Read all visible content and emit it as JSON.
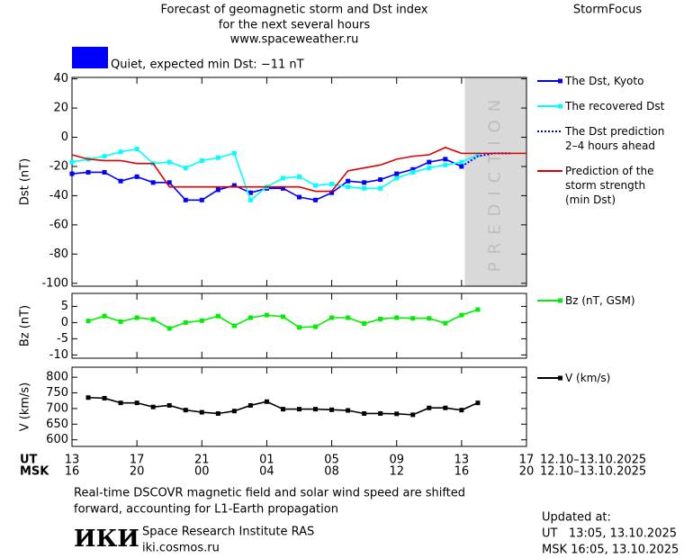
{
  "header": {
    "title": "Forecast of geomagnetic storm and Dst index",
    "subtitle": "for the next several hours",
    "url": "www.spaceweather.ru",
    "brand": "StormFocus"
  },
  "status": {
    "label": "Quiet, expected min Dst: −11 nT",
    "color": "#0000ff"
  },
  "time_axis": {
    "rows": [
      {
        "label": "UT",
        "range": "12.10–13.10.2025",
        "ticks": [
          {
            "value": 0,
            "label": "13"
          },
          {
            "value": 4,
            "label": "17"
          },
          {
            "value": 8,
            "label": "21"
          },
          {
            "value": 12,
            "label": "01"
          },
          {
            "value": 16,
            "label": "05"
          },
          {
            "value": 20,
            "label": "09"
          },
          {
            "value": 24,
            "label": "13"
          },
          {
            "value": 28,
            "label": "17"
          }
        ]
      },
      {
        "label": "MSK",
        "range": "12.10–13.10.2025",
        "ticks": [
          {
            "value": 0,
            "label": "16"
          },
          {
            "value": 4,
            "label": "20"
          },
          {
            "value": 8,
            "label": "00"
          },
          {
            "value": 12,
            "label": "04"
          },
          {
            "value": 16,
            "label": "08"
          },
          {
            "value": 20,
            "label": "12"
          },
          {
            "value": 24,
            "label": "16"
          },
          {
            "value": 28,
            "label": "20"
          }
        ]
      }
    ]
  },
  "chart_data": [
    {
      "type": "line",
      "ylabel": "Dst (nT)",
      "xlim": [
        0,
        28
      ],
      "ylim": [
        -102,
        41
      ],
      "yticks": [
        40,
        20,
        0,
        -20,
        -40,
        -60,
        -80,
        -100
      ],
      "prediction_zone": {
        "xlim": [
          24.2,
          28
        ],
        "label": "PREDICTION"
      },
      "series": [
        {
          "name": "The Dst, Kyoto",
          "color": "#0000ff",
          "marker": "square",
          "x": [
            0,
            1,
            2,
            3,
            4,
            5,
            6,
            7,
            8,
            9,
            10,
            11,
            12,
            13,
            14,
            15,
            16,
            17,
            18,
            19,
            20,
            21,
            22,
            23,
            24
          ],
          "values": [
            -25,
            -24,
            -24,
            -30,
            -27,
            -31,
            -31,
            -43,
            -43,
            -36,
            -33,
            -38,
            -35,
            -35,
            -41,
            -43,
            -38,
            -30,
            -31,
            -29,
            -25,
            -22,
            -17,
            -15,
            -20
          ]
        },
        {
          "name": "The recovered Dst",
          "color": "#00ffff",
          "marker": "square",
          "x": [
            0,
            1,
            2,
            3,
            4,
            5,
            6,
            7,
            8,
            9,
            10,
            11,
            12,
            13,
            14,
            15,
            16,
            17,
            18,
            19,
            20,
            21,
            22,
            23,
            24,
            25
          ],
          "values": [
            -17,
            -15,
            -13,
            -10,
            -8,
            -18,
            -17,
            -21,
            -16,
            -14,
            -11,
            -43,
            -34,
            -28,
            -27,
            -33,
            -32,
            -34,
            -35,
            -35,
            -28,
            -24,
            -21,
            -19,
            -17,
            -12
          ]
        },
        {
          "name": "The Dst prediction\n2–4 hours ahead",
          "color": "#0000ff",
          "dash": "dotted",
          "x": [
            24,
            25,
            26,
            27
          ],
          "values": [
            -20,
            -13,
            -11,
            -11
          ]
        },
        {
          "name": "Prediction of the\nstorm strength\n(min Dst)",
          "color": "#dd0000",
          "x": [
            0,
            1,
            2,
            3,
            4,
            5,
            6,
            7,
            8,
            9,
            10,
            11,
            12,
            13,
            14,
            15,
            16,
            17,
            18,
            19,
            20,
            21,
            22,
            23,
            24,
            25,
            26,
            27,
            28
          ],
          "values": [
            -12,
            -15,
            -16,
            -16,
            -18,
            -18,
            -34,
            -34,
            -34,
            -34,
            -34,
            -34,
            -34,
            -34,
            -34,
            -37,
            -37,
            -23,
            -21,
            -19,
            -15,
            -13,
            -12,
            -7,
            -11,
            -11,
            -11,
            -11,
            -11
          ]
        }
      ]
    },
    {
      "type": "line",
      "ylabel": "Bz (nT)",
      "xlim": [
        0,
        28
      ],
      "ylim": [
        -11,
        9
      ],
      "yticks": [
        5,
        0,
        -5,
        -10
      ],
      "series": [
        {
          "name": "Bz (nT, GSM)",
          "color": "#00ee00",
          "marker": "square",
          "x": [
            1,
            2,
            3,
            4,
            5,
            6,
            7,
            8,
            9,
            10,
            11,
            12,
            13,
            14,
            15,
            16,
            17,
            18,
            19,
            20,
            21,
            22,
            23,
            24,
            25
          ],
          "values": [
            0.5,
            2,
            0.3,
            1.5,
            1,
            -1.8,
            0,
            0.6,
            2,
            -1,
            1.5,
            2.3,
            1.8,
            -1.5,
            -1.3,
            1.5,
            1.5,
            -0.3,
            1.1,
            1.5,
            1.3,
            1.3,
            -0.2,
            2.3,
            4
          ]
        }
      ]
    },
    {
      "type": "line",
      "ylabel": "V (km/s)",
      "xlim": [
        0,
        28
      ],
      "ylim": [
        579,
        832
      ],
      "yticks": [
        800,
        750,
        700,
        650,
        600
      ],
      "series": [
        {
          "name": "V (km/s)",
          "color": "#000000",
          "marker": "square",
          "x": [
            1,
            2,
            3,
            4,
            5,
            6,
            7,
            8,
            9,
            10,
            11,
            12,
            13,
            14,
            15,
            16,
            17,
            18,
            19,
            20,
            21,
            22,
            23,
            24,
            25
          ],
          "values": [
            735,
            733,
            718,
            718,
            705,
            710,
            695,
            688,
            684,
            692,
            710,
            722,
            698,
            698,
            698,
            696,
            694,
            684,
            684,
            683,
            680,
            702,
            702,
            695,
            718
          ]
        }
      ]
    }
  ],
  "footer": {
    "note": [
      "Real-time DSCOVR magnetic field and solar wind speed are shifted",
      "forward, accounting for L1-Earth propagation"
    ],
    "logo": "ИКИ",
    "institute": "Space Research Institute RAS",
    "site": "iki.cosmos.ru",
    "updated": [
      "Updated at:",
      "UT   13:05, 13.10.2025",
      "MSK 16:05, 13.10.2025"
    ]
  }
}
